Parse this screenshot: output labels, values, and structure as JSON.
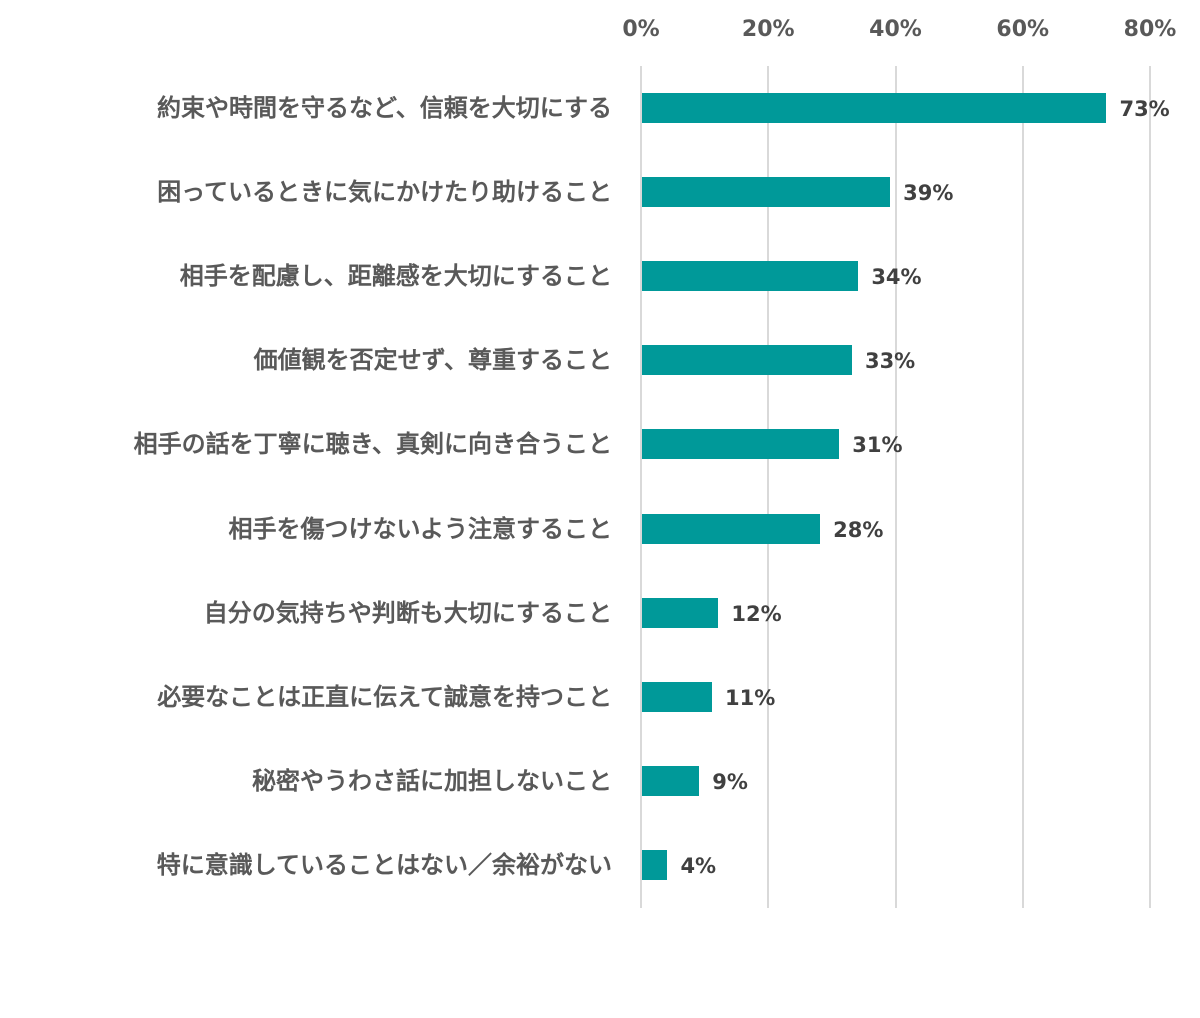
{
  "chart_data": {
    "type": "bar",
    "orientation": "horizontal",
    "title": "",
    "xlabel": "",
    "ylabel": "",
    "xlim": [
      0,
      80
    ],
    "x_ticks": [
      "0%",
      "20%",
      "40%",
      "60%",
      "80%"
    ],
    "x_axis_position": "top",
    "grid": true,
    "legend": null,
    "bar_color": "#009999",
    "categories": [
      "約束や時間を守るなど、信頼を大切にする",
      "困っているときに気にかけたり助けること",
      "相手を配慮し、距離感を大切にすること",
      "価値観を否定せず、尊重すること",
      "相手の話を丁寧に聴き、真剣に向き合うこと",
      "相手を傷つけないよう注意すること",
      "自分の気持ちや判断も大切にすること",
      "必要なことは正直に伝えて誠意を持つこと",
      "秘密やうわさ話に加担しないこと",
      "特に意識していることはない／余裕がない"
    ],
    "values": [
      73,
      39,
      34,
      33,
      31,
      28,
      12,
      11,
      9,
      4
    ],
    "value_labels": [
      "73%",
      "39%",
      "34%",
      "33%",
      "31%",
      "28%",
      "12%",
      "11%",
      "9%",
      "4%"
    ]
  }
}
